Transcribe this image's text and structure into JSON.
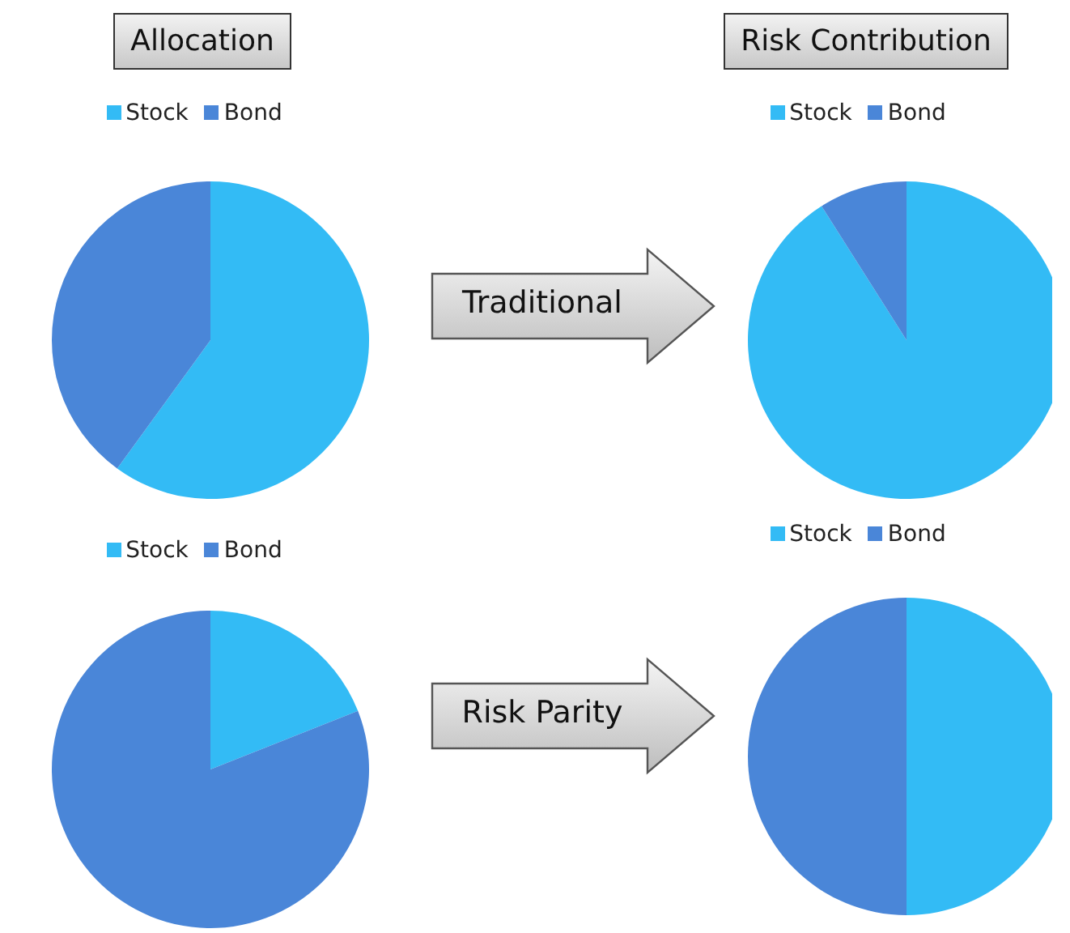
{
  "chart_data": [
    {
      "type": "pie",
      "title": "Allocation",
      "categories": [
        "Stock",
        "Bond"
      ],
      "values": [
        60,
        40
      ],
      "colors": [
        "#33bbf5",
        "#4a86d8"
      ],
      "legend": "top"
    },
    {
      "type": "pie",
      "title": "Risk Contribution",
      "categories": [
        "Stock",
        "Bond"
      ],
      "values": [
        91,
        9
      ],
      "colors": [
        "#33bbf5",
        "#4a86d8"
      ],
      "legend": "top",
      "annotations": [
        "Traditional"
      ]
    },
    {
      "type": "pie",
      "categories": [
        "Stock",
        "Bond"
      ],
      "values": [
        19,
        81
      ],
      "colors": [
        "#33bbf5",
        "#4a86d8"
      ],
      "legend": "top"
    },
    {
      "type": "pie",
      "categories": [
        "Stock",
        "Bond"
      ],
      "values": [
        50,
        50
      ],
      "colors": [
        "#33bbf5",
        "#4a86d8"
      ],
      "legend": "top",
      "annotations": [
        "Risk Parity"
      ]
    }
  ]
}
